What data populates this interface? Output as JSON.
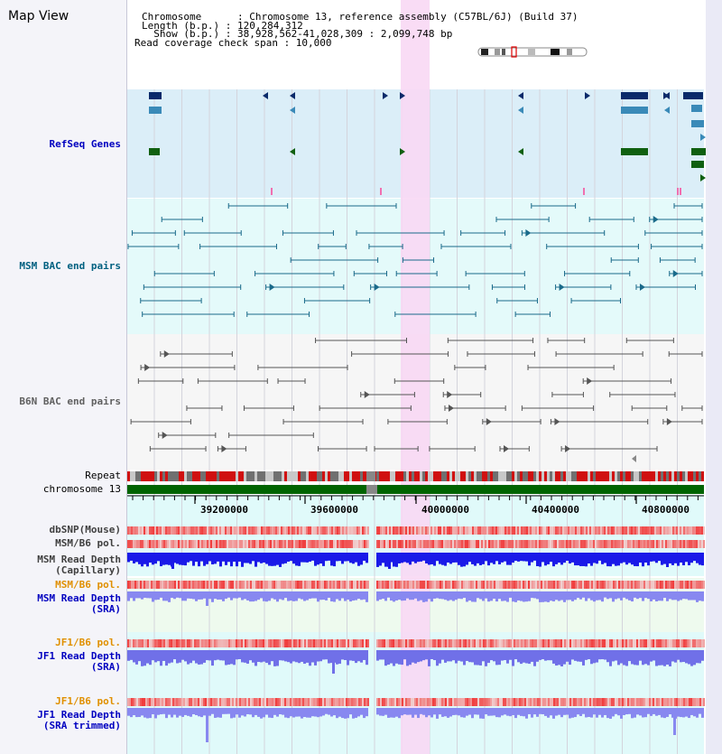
{
  "view_title": "Map View",
  "info": {
    "chromosome": "Chromosome      : Chromosome 13, reference assembly (C57BL/6J) (Build 37)",
    "length": "Length (b.p.) : 120,284,312",
    "show": "  Show (b.p.) : 38,928,562-41,028,309 : 2,099,748 bp",
    "coverage": "Read coverage check span : 10,000"
  },
  "tracks": {
    "refseq": "RefSeq Genes",
    "msm_bac": "MSM BAC end pairs",
    "b6n_bac": "B6N BAC end pairs",
    "repeat": "Repeat",
    "chromosome": "chromosome 13",
    "dbsnp": "dbSNP(Mouse)",
    "msm_b6_pol": "MSM/B6 pol.",
    "msm_depth_cap_1": "MSM Read Depth",
    "msm_depth_cap_2": "(Capillary)",
    "msm_b6_pol_sra": "MSM/B6 pol.",
    "msm_depth_sra_1": "MSM Read Depth",
    "msm_depth_sra_2": "(SRA)",
    "jf1_b6_pol": "JF1/B6 pol.",
    "jf1_depth_1": "JF1 Read Depth",
    "jf1_depth_2": "(SRA)",
    "jf1_b6_pol_trim": "JF1/B6 pol.",
    "jf1_trim_1": "JF1 Read Depth",
    "jf1_trim_2": "(SRA trimmed)"
  },
  "ruler": {
    "ticks": [
      "39200000",
      "39600000",
      "40000000",
      "40400000",
      "40800000"
    ]
  },
  "colors": {
    "refseq_bg": "#dbeef8",
    "msm_bg": "#e4fafa",
    "label_blue": "#0000c0",
    "label_teal": "#006080",
    "label_orange": "#e09000",
    "highlight": "#f8d8f4",
    "chrom_green": "#006400"
  }
}
